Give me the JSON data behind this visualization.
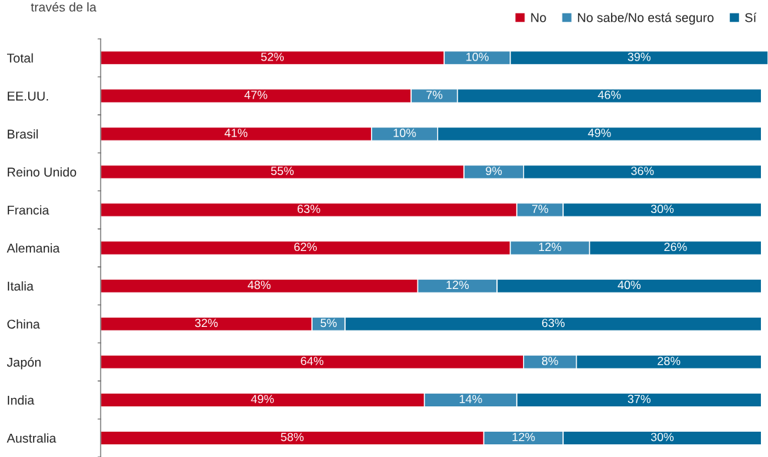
{
  "chart_data": {
    "type": "bar",
    "orientation": "horizontal",
    "stacked": true,
    "title": "través de la",
    "categories": [
      "Total",
      "EE.UU.",
      "Brasil",
      "Reino Unido",
      "Francia",
      "Alemania",
      "Italia",
      "China",
      "Japón",
      "India",
      "Australia"
    ],
    "series": [
      {
        "name": "No",
        "color": "#c8001e",
        "values": [
          52,
          47,
          41,
          55,
          63,
          62,
          48,
          32,
          64,
          49,
          58
        ],
        "value_labels": [
          "52%",
          "47%",
          "41%",
          "55%",
          "63%",
          "62%",
          "48%",
          "32%",
          "64%",
          "49%",
          "58%"
        ]
      },
      {
        "name": "No sabe/No está seguro",
        "color": "#3a8ab5",
        "values": [
          10,
          7,
          10,
          9,
          7,
          12,
          12,
          5,
          8,
          14,
          12
        ],
        "value_labels": [
          "10%",
          "7%",
          "10%",
          "9%",
          "7%",
          "12%",
          "12%",
          "5%",
          "8%",
          "14%",
          "12%"
        ]
      },
      {
        "name": "Sí",
        "color": "#046a9a",
        "values": [
          39,
          46,
          49,
          36,
          30,
          26,
          40,
          63,
          28,
          37,
          30
        ],
        "value_labels": [
          "39%",
          "46%",
          "49%",
          "36%",
          "30%",
          "26%",
          "40%",
          "63%",
          "28%",
          "37%",
          "30%"
        ]
      }
    ],
    "legend": "top right",
    "grid": false,
    "tick_labels": "y"
  }
}
